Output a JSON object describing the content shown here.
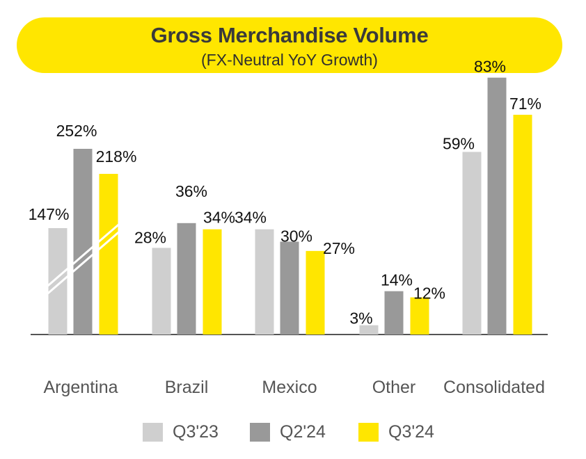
{
  "header": {
    "title": "Gross Merchandise Volume",
    "subtitle": "(FX-Neutral YoY Growth)"
  },
  "colors": {
    "banner": "#FFE600",
    "q3_23": "#CFCFCF",
    "q2_24": "#999999",
    "q3_24": "#FFE600",
    "baseline": "#555555",
    "value_label": "#111111",
    "category_label": "#555555"
  },
  "legend": {
    "items": [
      {
        "label": "Q3'23",
        "color": "#CFCFCF"
      },
      {
        "label": "Q2'24",
        "color": "#999999"
      },
      {
        "label": "Q3'24",
        "color": "#FFE600"
      }
    ]
  },
  "chart_data": {
    "type": "bar",
    "title": "Gross Merchandise Volume",
    "subtitle": "(FX-Neutral YoY Growth)",
    "categories": [
      "Argentina",
      "Brazil",
      "Mexico",
      "Other",
      "Consolidated"
    ],
    "series": [
      {
        "name": "Q3'23",
        "color": "#CFCFCF",
        "values": [
          147,
          28,
          34,
          3,
          59
        ],
        "labels": [
          "147%",
          "28%",
          "34%",
          "3%",
          "59%"
        ]
      },
      {
        "name": "Q2'24",
        "color": "#999999",
        "values": [
          252,
          36,
          30,
          14,
          83
        ],
        "labels": [
          "252%",
          "36%",
          "30%",
          "14%",
          "83%"
        ]
      },
      {
        "name": "Q3'24",
        "color": "#FFE600",
        "values": [
          218,
          34,
          27,
          12,
          71
        ],
        "labels": [
          "218%",
          "34%",
          "27%",
          "12%",
          "71%"
        ]
      }
    ],
    "scale_break": {
      "category": "Argentina"
    },
    "grid": false,
    "legend_position": "bottom",
    "xlabel": "",
    "ylabel": ""
  }
}
